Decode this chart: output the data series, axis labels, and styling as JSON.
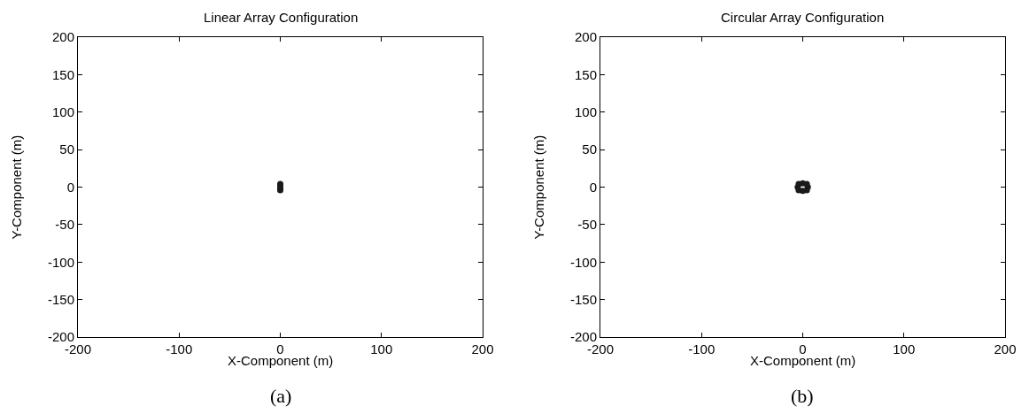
{
  "chart_data": [
    {
      "type": "scatter",
      "title": "Linear Array Configuration",
      "xlabel": "X-Component (m)",
      "ylabel": "Y-Component (m)",
      "annotations": [
        "(a)"
      ],
      "x": [
        0,
        0,
        0,
        0,
        0
      ],
      "values": [
        -4,
        -2,
        0,
        2,
        4
      ],
      "color": "#1a1a1a",
      "marker": "circle",
      "xlim": [
        -200,
        200
      ],
      "ylim": [
        -200,
        200
      ],
      "xticks": [
        -200,
        -100,
        0,
        100,
        200
      ],
      "yticks": [
        -200,
        -150,
        -100,
        -50,
        0,
        50,
        100,
        150,
        200
      ]
    },
    {
      "type": "scatter",
      "title": "Circular Array Configuration",
      "xlabel": "X-Component (m)",
      "ylabel": "Y-Component (m)",
      "annotations": [
        "(b)"
      ],
      "x": [
        5,
        4,
        0,
        -4,
        -5,
        -4,
        0,
        4
      ],
      "values": [
        0,
        4,
        5,
        4,
        0,
        -4,
        -5,
        -4
      ],
      "color": "#1a1a1a",
      "marker": "circle",
      "xlim": [
        -200,
        200
      ],
      "ylim": [
        -200,
        200
      ],
      "xticks": [
        -200,
        -100,
        0,
        100,
        200
      ],
      "yticks": [
        -200,
        -150,
        -100,
        -50,
        0,
        50,
        100,
        150,
        200
      ]
    }
  ]
}
